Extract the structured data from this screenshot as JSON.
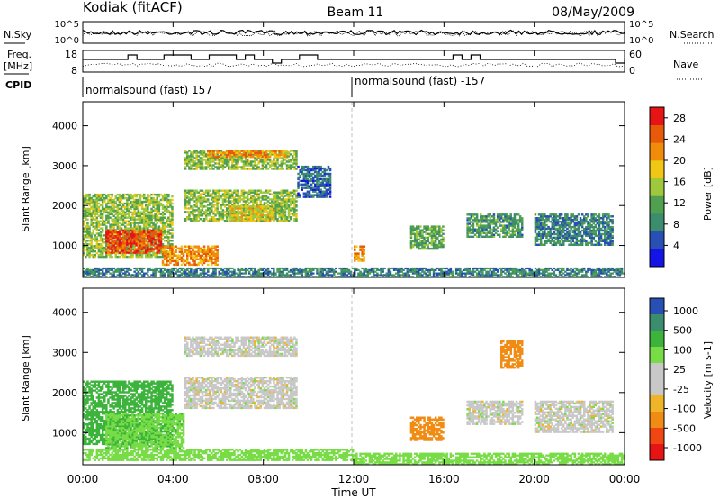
{
  "header": {
    "station": "Kodiak (fitACF)",
    "beam": "Beam 11",
    "date": "08/May/2009"
  },
  "side_labels": {
    "nsky": "N.Sky",
    "nsearch": "N.Search",
    "freq_line1": "Freq.",
    "freq_line2": "[MHz]",
    "nave": "Nave",
    "cpid": "CPID"
  },
  "noise_axis_left": [
    "10^5",
    "10^0"
  ],
  "noise_axis_right": [
    "10^5",
    "10^0"
  ],
  "freq_axis_left": [
    "18",
    "8"
  ],
  "freq_axis_right": [
    "60",
    "0"
  ],
  "cpid_segments": [
    "normalsound (fast) 157",
    "normalsound (fast) -157"
  ],
  "colors": {
    "power_scale": [
      "#1414e6",
      "#2850b4",
      "#3c8c6e",
      "#50a050",
      "#a0c83c",
      "#f0c814",
      "#f08c0a",
      "#e65a0a",
      "#e61414"
    ],
    "velocity_scale": [
      "#e61414",
      "#f04614",
      "#f08c14",
      "#f0b428",
      "#c8c8c8",
      "#c8c8c8",
      "#78dc46",
      "#3cb43c",
      "#3c8c6e",
      "#2850b4"
    ]
  },
  "chart_data": [
    {
      "type": "heatmap",
      "title": "Power",
      "xlabel": "Time UT",
      "ylabel": "Slant Range [km]",
      "x_ticks": [
        "00:00",
        "04:00",
        "08:00",
        "12:00",
        "16:00",
        "20:00",
        "00:00"
      ],
      "y_ticks": [
        "1000",
        "2000",
        "3000",
        "4000"
      ],
      "ylim": [
        200,
        4600
      ],
      "colorbar_label": "Power [dB]",
      "colorbar_ticks": [
        "4",
        "8",
        "12",
        "16",
        "20",
        "24",
        "28"
      ],
      "colorbar_range": [
        0,
        30
      ],
      "regions": [
        {
          "t0": 0.0,
          "t1": 4.0,
          "r0": 700,
          "r1": 2300,
          "value": 14
        },
        {
          "t0": 1.0,
          "t1": 3.5,
          "r0": 800,
          "r1": 1400,
          "value": 26
        },
        {
          "t0": 3.5,
          "t1": 6.0,
          "r0": 500,
          "r1": 1000,
          "value": 22
        },
        {
          "t0": 0.0,
          "t1": 24.0,
          "r0": 200,
          "r1": 450,
          "value": 8
        },
        {
          "t0": 4.5,
          "t1": 9.5,
          "r0": 2900,
          "r1": 3400,
          "value": 14
        },
        {
          "t0": 5.5,
          "t1": 9.0,
          "r0": 3200,
          "r1": 3400,
          "value": 22
        },
        {
          "t0": 4.5,
          "t1": 9.5,
          "r0": 1600,
          "r1": 2400,
          "value": 14
        },
        {
          "t0": 6.5,
          "t1": 8.5,
          "r0": 1600,
          "r1": 2000,
          "value": 18
        },
        {
          "t0": 9.5,
          "t1": 11.0,
          "r0": 2200,
          "r1": 3000,
          "value": 6
        },
        {
          "t0": 12.0,
          "t1": 12.5,
          "r0": 600,
          "r1": 1000,
          "value": 22
        },
        {
          "t0": 14.5,
          "t1": 16.0,
          "r0": 900,
          "r1": 1500,
          "value": 12
        },
        {
          "t0": 17.0,
          "t1": 19.5,
          "r0": 1200,
          "r1": 1800,
          "value": 10
        },
        {
          "t0": 20.0,
          "t1": 23.5,
          "r0": 1000,
          "r1": 1800,
          "value": 8
        }
      ]
    },
    {
      "type": "heatmap",
      "title": "Velocity",
      "xlabel": "Time UT",
      "ylabel": "Slant Range [km]",
      "x_ticks": [
        "00:00",
        "04:00",
        "08:00",
        "12:00",
        "16:00",
        "20:00",
        "00:00"
      ],
      "y_ticks": [
        "1000",
        "2000",
        "3000",
        "4000"
      ],
      "ylim": [
        200,
        4600
      ],
      "colorbar_label": "Velocity [m s-1]",
      "colorbar_ticks": [
        "1000",
        "500",
        "100",
        "25",
        "-25",
        "-100",
        "-500",
        "-1000"
      ],
      "regions": [
        {
          "t0": 0.0,
          "t1": 4.0,
          "r0": 700,
          "r1": 2300,
          "value": 200
        },
        {
          "t0": 1.0,
          "t1": 4.5,
          "r0": 600,
          "r1": 1500,
          "value": 80
        },
        {
          "t0": 0.0,
          "t1": 12.0,
          "r0": 300,
          "r1": 600,
          "value": 60
        },
        {
          "t0": 4.5,
          "t1": 9.5,
          "r0": 2900,
          "r1": 3400,
          "value": 0
        },
        {
          "t0": 4.5,
          "t1": 9.5,
          "r0": 1600,
          "r1": 2400,
          "value": 0
        },
        {
          "t0": 12.0,
          "t1": 24.0,
          "r0": 200,
          "r1": 500,
          "value": 60
        },
        {
          "t0": 14.5,
          "t1": 16.0,
          "r0": 800,
          "r1": 1400,
          "value": -200
        },
        {
          "t0": 17.0,
          "t1": 19.5,
          "r0": 1200,
          "r1": 1800,
          "value": 0
        },
        {
          "t0": 20.0,
          "t1": 23.5,
          "r0": 1000,
          "r1": 1800,
          "value": 0
        },
        {
          "t0": 18.5,
          "t1": 19.5,
          "r0": 2600,
          "r1": 3300,
          "value": -400
        }
      ]
    }
  ]
}
